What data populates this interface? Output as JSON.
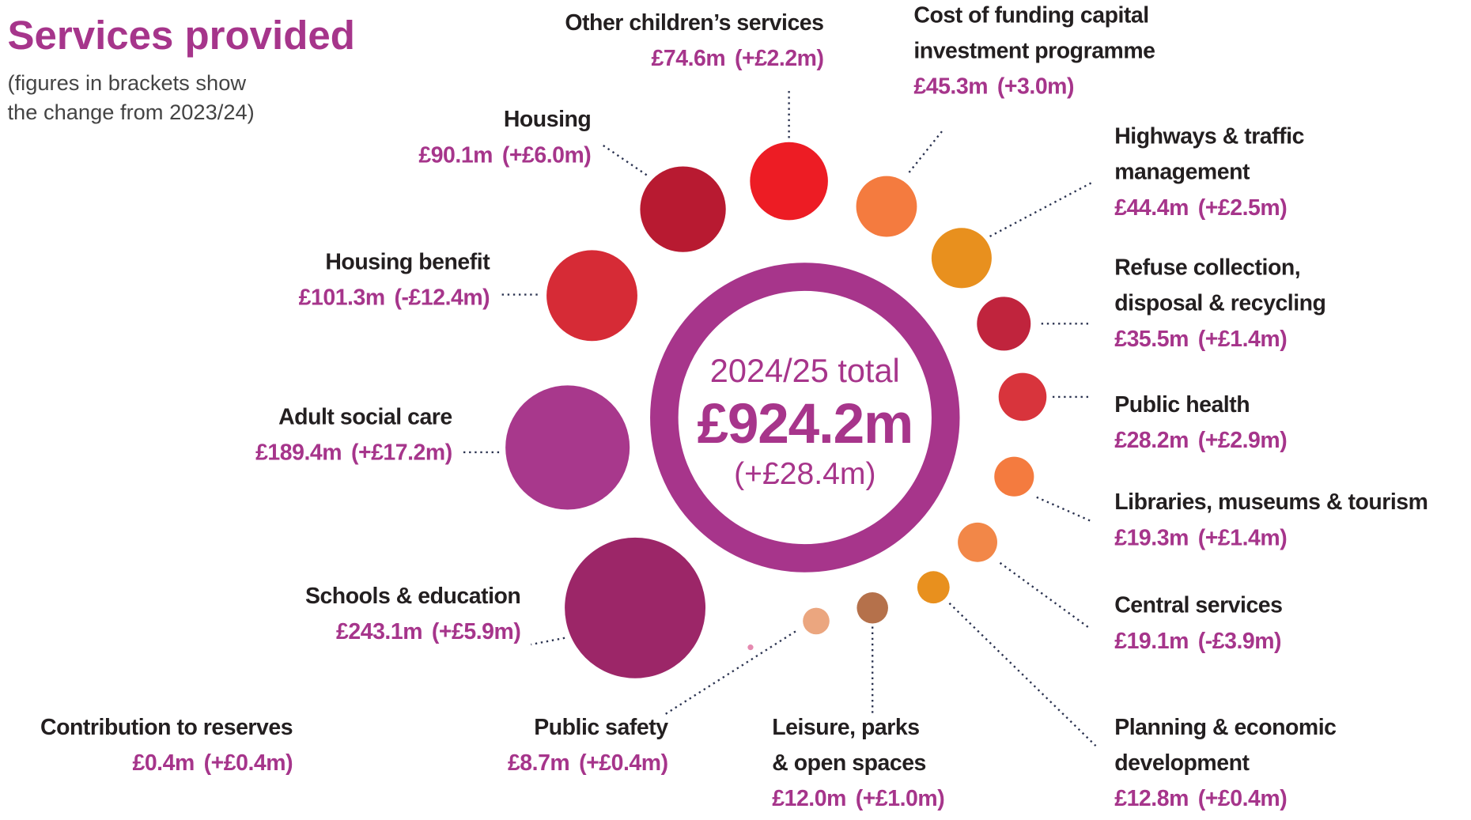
{
  "chart_data": {
    "type": "bubble",
    "title": "Services provided",
    "subtitle": [
      "(figures in brackets show",
      "the change from 2023/24)"
    ],
    "total_caption": "2024/25 total",
    "total": 924.2,
    "total_label": "£924.2m",
    "total_change": 28.4,
    "total_change_label": "(+£28.4m)",
    "categories": [
      [
        "Other children’s services"
      ],
      [
        "Cost of funding capital",
        "investment programme"
      ],
      [
        "Highways & traffic",
        "management"
      ],
      [
        "Refuse collection,",
        "disposal & recycling"
      ],
      [
        "Public health"
      ],
      [
        "Libraries, museums & tourism"
      ],
      [
        "Central services"
      ],
      [
        "Planning & economic",
        "development"
      ],
      [
        "Leisure, parks",
        "& open spaces"
      ],
      [
        "Public safety"
      ],
      [
        "Contribution to reserves"
      ],
      [
        "Schools & education"
      ],
      [
        "Adult social care"
      ],
      [
        "Housing benefit"
      ],
      [
        "Housing"
      ]
    ],
    "values": [
      74.6,
      45.3,
      44.4,
      35.5,
      28.2,
      19.3,
      19.1,
      12.8,
      12.0,
      8.7,
      0.4,
      243.1,
      189.4,
      101.3,
      90.1
    ],
    "value_labels": [
      "£74.6m",
      "£45.3m",
      "£44.4m",
      "£35.5m",
      "£28.2m",
      "£19.3m",
      "£19.1m",
      "£12.8m",
      "£12.0m",
      "£8.7m",
      "£0.4m",
      "£243.1m",
      "£189.4m",
      "£101.3m",
      "£90.1m"
    ],
    "changes": [
      2.2,
      3.0,
      2.5,
      1.4,
      2.9,
      1.4,
      -3.9,
      0.4,
      1.0,
      0.4,
      0.4,
      5.9,
      17.2,
      -12.4,
      6.0
    ],
    "change_labels": [
      "(+£2.2m)",
      "(+3.0m)",
      "(+£2.5m)",
      "(+£1.4m)",
      "(+£2.9m)",
      "(+£1.4m)",
      "(-£3.9m)",
      "(+£0.4m)",
      "(+£1.0m)",
      "(+£0.4m)",
      "(+£0.4m)",
      "(+£5.9m)",
      "(+£17.2m)",
      "(-£12.4m)",
      "(+£6.0m)"
    ],
    "colors": [
      "#ed1c24",
      "#f47b3f",
      "#e8901e",
      "#c0243d",
      "#d8343c",
      "#f47b3f",
      "#f28748",
      "#e8901e",
      "#b5714b",
      "#eba67f",
      "#e58ab0",
      "#9c2668",
      "#a8388c",
      "#d62b36",
      "#b81a31"
    ],
    "ring_color": "#a7358b"
  }
}
